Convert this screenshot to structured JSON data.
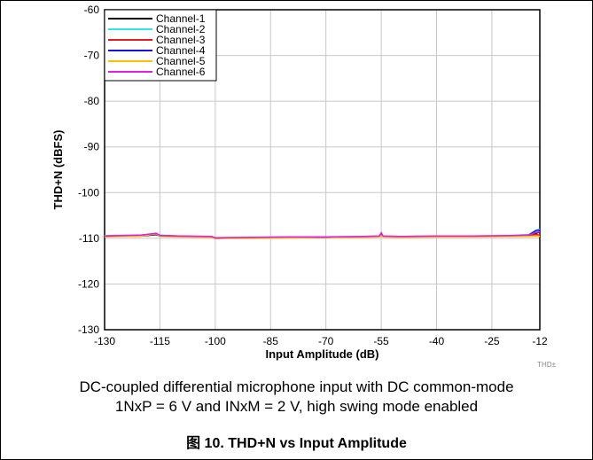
{
  "chart_data": {
    "type": "line",
    "title": "",
    "xlabel": "Input Amplitude (dB)",
    "ylabel": "THD+N (dBFS)",
    "xlim": [
      -130,
      -12
    ],
    "ylim": [
      -130,
      -60
    ],
    "xticks": [
      -130,
      -115,
      -100,
      -85,
      -70,
      -55,
      -40,
      -25,
      -12
    ],
    "yticks": [
      -60,
      -70,
      -80,
      -90,
      -100,
      -110,
      -120,
      -130
    ],
    "grid": true,
    "legend_position": "top-left",
    "series": [
      {
        "name": "Channel-1",
        "color": "#000000",
        "x": [
          -130,
          -120,
          -116,
          -115,
          -110,
          -101,
          -100,
          -90,
          -80,
          -70,
          -60,
          -55.5,
          -55,
          -54.5,
          -50,
          -40,
          -30,
          -20,
          -15,
          -13,
          -12
        ],
        "y": [
          -109.6,
          -109.5,
          -109.2,
          -109.5,
          -109.6,
          -109.7,
          -110.0,
          -109.9,
          -109.8,
          -109.8,
          -109.7,
          -109.6,
          -109.3,
          -109.6,
          -109.7,
          -109.6,
          -109.6,
          -109.5,
          -109.4,
          -108.9,
          -108.6
        ]
      },
      {
        "name": "Channel-2",
        "color": "#33e6e6",
        "x": [
          -130,
          -120,
          -116,
          -115,
          -110,
          -101,
          -100,
          -90,
          -80,
          -70,
          -60,
          -55.5,
          -55,
          -54.5,
          -50,
          -40,
          -30,
          -20,
          -15,
          -13,
          -12
        ],
        "y": [
          -109.4,
          -109.3,
          -109.0,
          -109.3,
          -109.5,
          -109.6,
          -109.9,
          -109.8,
          -109.7,
          -109.7,
          -109.6,
          -109.5,
          -108.9,
          -109.5,
          -109.6,
          -109.5,
          -109.5,
          -109.4,
          -109.2,
          -108.2,
          -108.0
        ]
      },
      {
        "name": "Channel-3",
        "color": "#e02020",
        "x": [
          -130,
          -120,
          -116,
          -115,
          -110,
          -101,
          -100,
          -90,
          -80,
          -70,
          -60,
          -55.5,
          -55,
          -54.5,
          -50,
          -40,
          -30,
          -20,
          -15,
          -13,
          -12
        ],
        "y": [
          -109.5,
          -109.4,
          -109.1,
          -109.4,
          -109.5,
          -109.7,
          -110.0,
          -109.9,
          -109.8,
          -109.7,
          -109.7,
          -109.6,
          -109.2,
          -109.6,
          -109.7,
          -109.6,
          -109.5,
          -109.5,
          -109.4,
          -109.2,
          -109.3
        ]
      },
      {
        "name": "Channel-4",
        "color": "#1010e0",
        "x": [
          -130,
          -120,
          -116,
          -115,
          -110,
          -101,
          -100,
          -90,
          -80,
          -70,
          -60,
          -55.5,
          -55,
          -54.5,
          -50,
          -40,
          -30,
          -20,
          -15,
          -13,
          -12
        ],
        "y": [
          -109.6,
          -109.4,
          -109.1,
          -109.4,
          -109.6,
          -109.7,
          -109.9,
          -109.9,
          -109.8,
          -109.8,
          -109.7,
          -109.6,
          -109.0,
          -109.6,
          -109.7,
          -109.6,
          -109.6,
          -109.5,
          -109.3,
          -108.3,
          -108.2
        ]
      },
      {
        "name": "Channel-5",
        "color": "#ffc000",
        "x": [
          -130,
          -120,
          -116,
          -115,
          -110,
          -101,
          -100,
          -90,
          -80,
          -70,
          -60,
          -55.5,
          -55,
          -54.5,
          -50,
          -40,
          -30,
          -20,
          -15,
          -13,
          -12
        ],
        "y": [
          -109.7,
          -109.5,
          -109.0,
          -109.6,
          -109.7,
          -109.8,
          -110.0,
          -110.0,
          -109.9,
          -109.8,
          -109.8,
          -109.7,
          -109.4,
          -109.7,
          -109.8,
          -109.7,
          -109.7,
          -109.6,
          -109.6,
          -109.5,
          -109.6
        ]
      },
      {
        "name": "Channel-6",
        "color": "#e020e0",
        "x": [
          -130,
          -120,
          -116,
          -115,
          -110,
          -101,
          -100,
          -90,
          -80,
          -70,
          -60,
          -55.5,
          -55,
          -54.5,
          -50,
          -40,
          -30,
          -20,
          -15,
          -13,
          -12
        ],
        "y": [
          -109.5,
          -109.3,
          -108.9,
          -109.4,
          -109.5,
          -109.6,
          -109.9,
          -109.8,
          -109.7,
          -109.7,
          -109.6,
          -109.5,
          -108.8,
          -109.5,
          -109.6,
          -109.5,
          -109.5,
          -109.4,
          -109.3,
          -108.7,
          -108.6
        ]
      }
    ]
  },
  "watermark": "THD±",
  "caption_line1": "DC-coupled differential microphone input with DC common-mode",
  "caption_line2": "1NxP = 6 V and INxM = 2 V, high swing mode enabled",
  "figure_title": "图 10. THD+N vs Input Amplitude"
}
